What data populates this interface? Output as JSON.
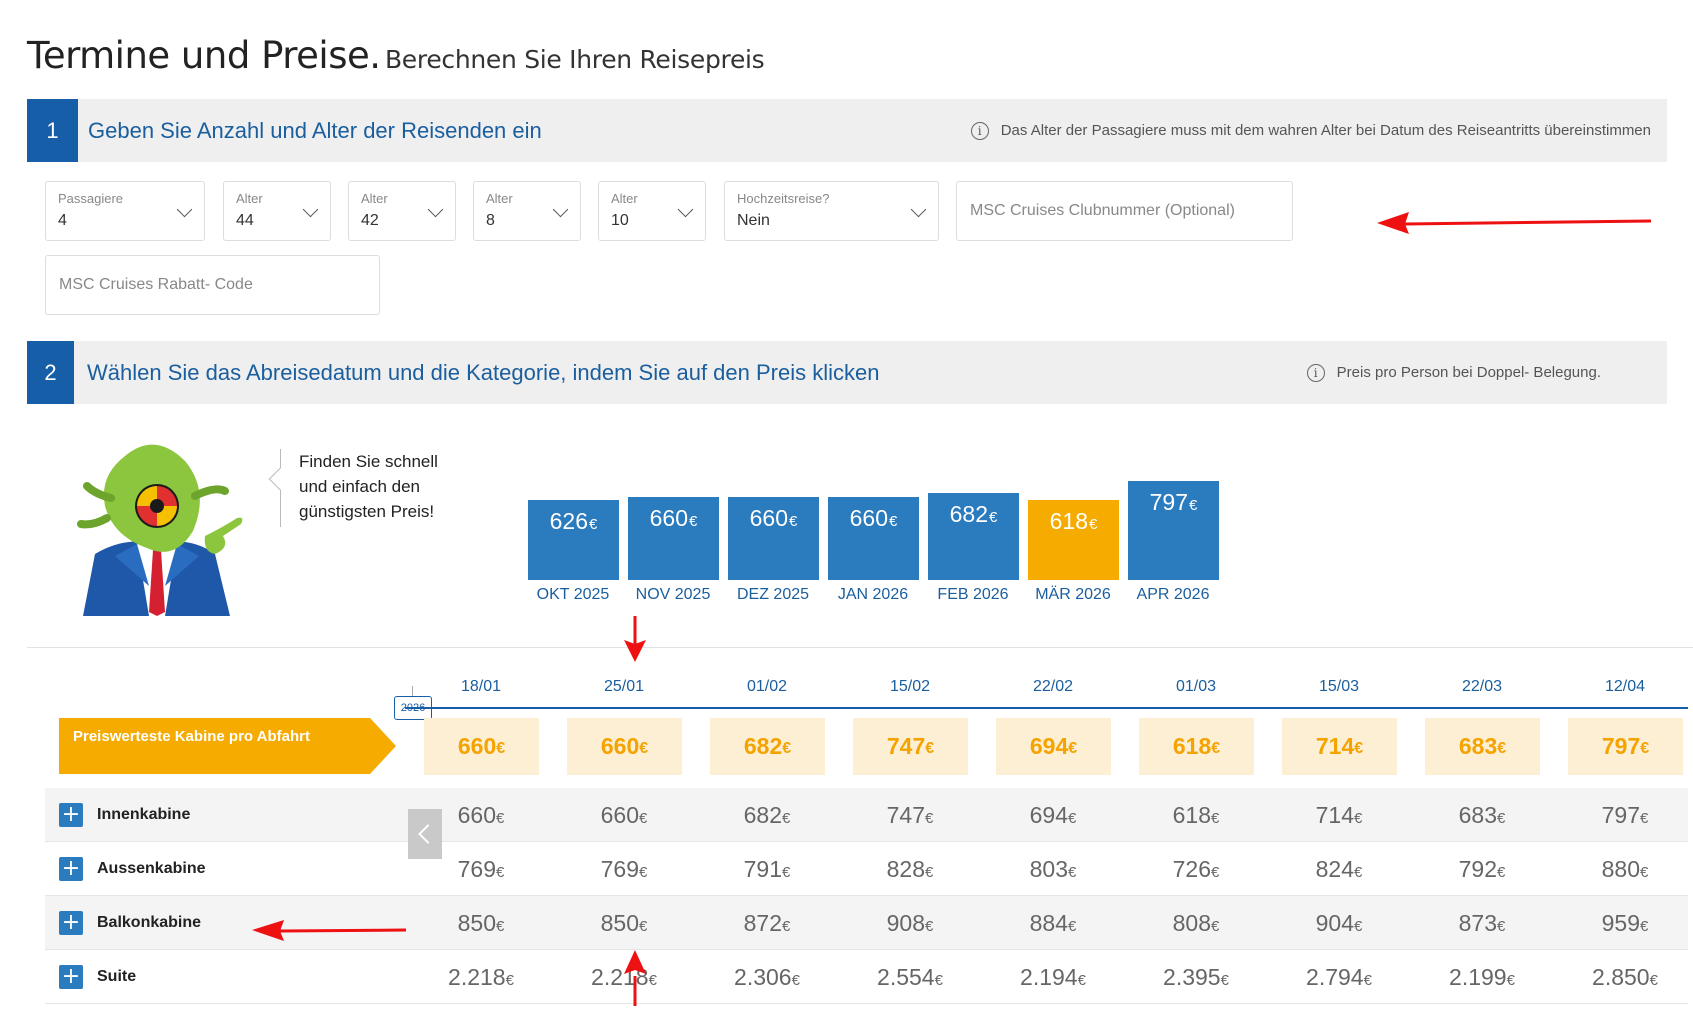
{
  "page": {
    "title_main": "Termine und Preise.",
    "title_sub": "Berechnen Sie Ihren Reisepreis"
  },
  "step1": {
    "number": "1",
    "title": "Geben Sie Anzahl und Alter der Reisenden ein",
    "note": "Das Alter der Passagiere muss mit dem wahren Alter bei Datum des Reiseantritts übereinstimmen",
    "fields": {
      "passengers": {
        "label": "Passagiere",
        "value": "4"
      },
      "age1": {
        "label": "Alter",
        "value": "44"
      },
      "age2": {
        "label": "Alter",
        "value": "42"
      },
      "age3": {
        "label": "Alter",
        "value": "8"
      },
      "age4": {
        "label": "Alter",
        "value": "10"
      },
      "honeymoon": {
        "label": "Hochzeitsreise?",
        "value": "Nein"
      },
      "club_number": {
        "placeholder": "MSC Cruises Clubnummer (Optional)"
      },
      "discount_code": {
        "placeholder": "MSC Cruises Rabatt- Code"
      }
    }
  },
  "step2": {
    "number": "2",
    "title": "Wählen Sie das Abreisedatum und die Kategorie, indem Sie auf den Preis klicken",
    "note": "Preis pro Person bei Doppel- Belegung."
  },
  "promo": {
    "line1": "Finden Sie schnell",
    "line2": "und einfach den",
    "line3": "günstigsten Preis!"
  },
  "currency": "€",
  "colors": {
    "brand_blue": "#175ea8",
    "bar_blue": "#2b7bbf",
    "highlight_orange": "#f5ab00",
    "best_cell_bg": "#fdefd3"
  },
  "months": [
    {
      "label": "OKT 2025",
      "price": "626",
      "active": false
    },
    {
      "label": "NOV 2025",
      "price": "660",
      "active": false
    },
    {
      "label": "DEZ 2025",
      "price": "660",
      "active": false
    },
    {
      "label": "JAN 2026",
      "price": "660",
      "active": false
    },
    {
      "label": "FEB 2026",
      "price": "682",
      "active": false
    },
    {
      "label": "MÄR 2026",
      "price": "618",
      "active": true
    },
    {
      "label": "APR 2026",
      "price": "797",
      "active": false
    }
  ],
  "table": {
    "year_tag": "2026",
    "best_label": "Preiswerteste Kabine pro Abfahrt",
    "dates": [
      "18/01",
      "25/01",
      "01/02",
      "15/02",
      "22/02",
      "01/03",
      "15/03",
      "22/03",
      "12/04"
    ],
    "best_prices": [
      "660",
      "660",
      "682",
      "747",
      "694",
      "618",
      "714",
      "683",
      "797"
    ],
    "cabins": [
      {
        "name": "Innenkabine",
        "prices": [
          "660",
          "660",
          "682",
          "747",
          "694",
          "618",
          "714",
          "683",
          "797"
        ]
      },
      {
        "name": "Aussenkabine",
        "prices": [
          "769",
          "769",
          "791",
          "828",
          "803",
          "726",
          "824",
          "792",
          "880"
        ]
      },
      {
        "name": "Balkonkabine",
        "prices": [
          "850",
          "850",
          "872",
          "908",
          "884",
          "808",
          "904",
          "873",
          "959"
        ]
      },
      {
        "name": "Suite",
        "prices": [
          "2.218",
          "2.218",
          "2.306",
          "2.554",
          "2.194",
          "2.395",
          "2.794",
          "2.199",
          "2.850"
        ]
      }
    ]
  },
  "icons": {
    "info": "info-icon",
    "chevron": "chevron-down-icon",
    "plus": "plus-icon",
    "scroll": "chevron-left-icon"
  }
}
